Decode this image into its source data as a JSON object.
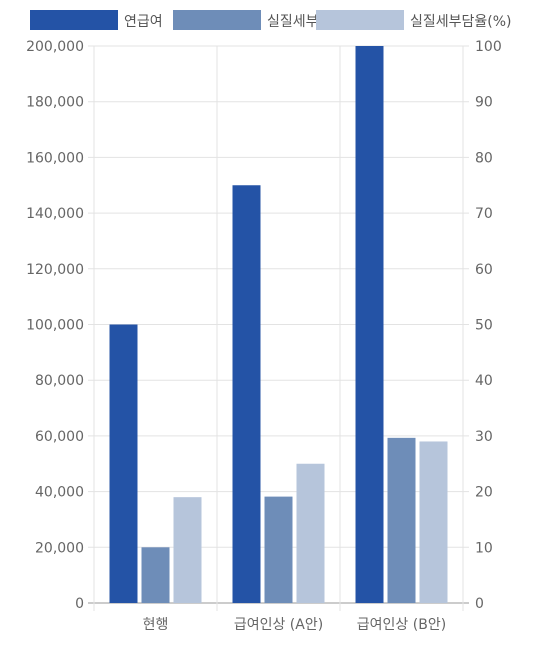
{
  "chart_data": {
    "type": "bar",
    "categories": [
      "현행",
      "급여인상 (A안)",
      "급여인상 (B안)"
    ],
    "series": [
      {
        "name": "연급여",
        "values": [
          100000,
          150000,
          200000
        ],
        "axis": "left",
        "color": "#2453A6"
      },
      {
        "name": "실질세부담",
        "values": [
          20000,
          38200,
          59300
        ],
        "axis": "left",
        "color": "#6E8DB8"
      },
      {
        "name": "실질세부담율(%)",
        "values": [
          19,
          25,
          29
        ],
        "axis": "right",
        "color": "#B6C5DB"
      }
    ],
    "y_left": {
      "ylim": [
        0,
        200000
      ],
      "ticks": [
        "200,000",
        "180,000",
        "160,000",
        "140,000",
        "120,000",
        "100,000",
        "80,000",
        "60,000",
        "40,000",
        "20,000",
        "0"
      ]
    },
    "y_right": {
      "ylim": [
        0,
        100
      ],
      "ticks": [
        "100",
        "90",
        "80",
        "70",
        "60",
        "50",
        "40",
        "30",
        "20",
        "10",
        "0"
      ]
    },
    "grid": true,
    "legend_position": "top"
  }
}
